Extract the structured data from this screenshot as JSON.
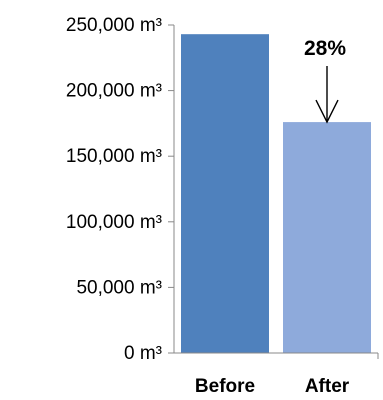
{
  "chart_data": {
    "type": "bar",
    "title": "",
    "xlabel": "",
    "ylabel": "",
    "categories": [
      "Before",
      "After"
    ],
    "values": [
      243000,
      176000
    ],
    "ylim": [
      0,
      250000
    ],
    "y_tick_values": [
      0,
      50000,
      100000,
      150000,
      200000,
      250000
    ],
    "y_tick_labels": [
      "0 m³",
      "50,000 m³",
      "100,000 m³",
      "150,000 m³",
      "200,000 m³",
      "250,000 m³"
    ],
    "bar_colors": [
      "#4f81bd",
      "#8eaadb"
    ],
    "gridlines": false,
    "legend": "none",
    "annotation": {
      "text": "28%",
      "target_category": "After",
      "arrow": "pointing down to top of bar"
    }
  }
}
